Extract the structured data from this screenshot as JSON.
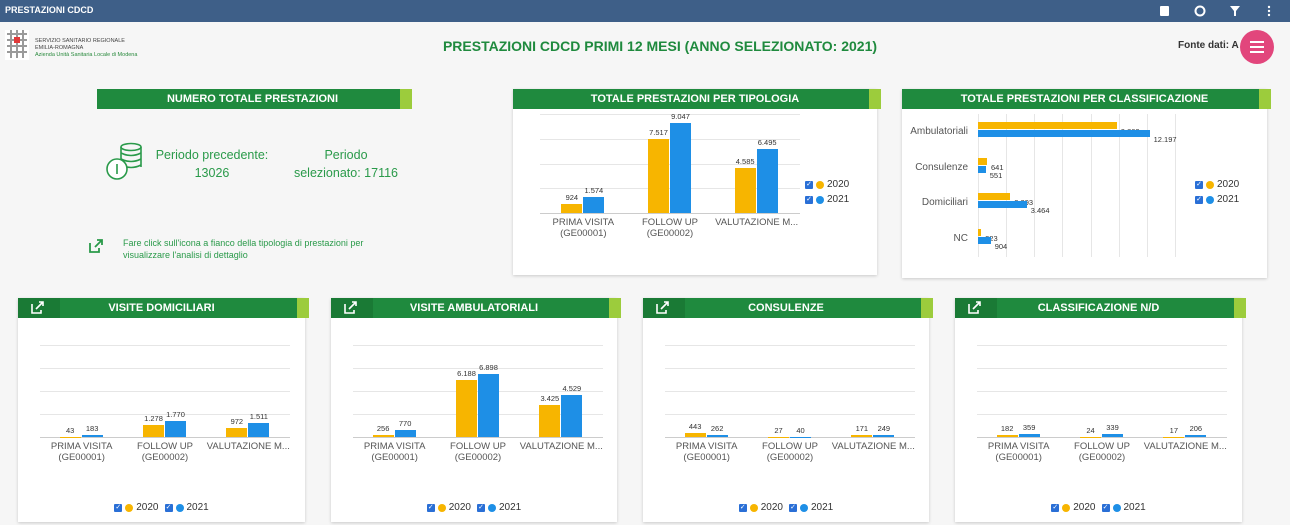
{
  "header": {
    "app_name": "PRESTAZIONI CDCD",
    "title": "PRESTAZIONI CDCD PRIMI 12 MESI (ANNO SELEZIONATO: 2021)",
    "source": "Fonte dati: A"
  },
  "logo": {
    "line1": "SERVIZIO SANITARIO REGIONALE",
    "line2": "EMILIA-ROMAGNA",
    "line3": "Azienda Unità Sanitaria Locale di Modena"
  },
  "summary": {
    "title": "NUMERO TOTALE PRESTAZIONI",
    "previous_label": "Periodo precedente:",
    "previous_value": 13026,
    "selected_label": "Periodo selezionato:",
    "selected_value": 17116,
    "note": "Fare click sull'icona a fianco della tipologia di prestazioni per visualizzare l'analisi di dettaglio"
  },
  "chart_data": [
    {
      "type": "bar",
      "title": "TOTALE PRESTAZIONI PER TIPOLOGIA",
      "legend": "right",
      "ylim": [
        0,
        10000
      ],
      "categories": [
        "PRIMA VISITA (GE00001)",
        "FOLLOW UP (GE00002)",
        "VALUTAZIONE M..."
      ],
      "series": [
        {
          "name": "2020",
          "color": "#f7b500",
          "values": [
            924,
            7517,
            4585
          ],
          "value_labels": [
            "924",
            "7.517",
            "4.585"
          ]
        },
        {
          "name": "2021",
          "color": "#1e8fe6",
          "values": [
            1574,
            9047,
            6495
          ],
          "value_labels": [
            "1.574",
            "9.047",
            "6.495"
          ]
        }
      ]
    },
    {
      "type": "bar",
      "horizontal": true,
      "title": "TOTALE PRESTAZIONI PER CLASSIFICAZIONE",
      "legend": "right",
      "xlim": [
        0,
        14000
      ],
      "categories": [
        "Ambulatoriali",
        "Consulenze",
        "Domiciliari",
        "NC"
      ],
      "series": [
        {
          "name": "2020",
          "color": "#f7b500",
          "values": [
            9869,
            641,
            2293,
            223
          ],
          "value_labels": [
            "9.869",
            "641",
            "2.293",
            "223"
          ]
        },
        {
          "name": "2021",
          "color": "#1e8fe6",
          "values": [
            12197,
            551,
            3464,
            904
          ],
          "value_labels": [
            "12.197",
            "551",
            "3.464",
            "904"
          ]
        }
      ]
    },
    {
      "type": "bar",
      "title": "VISITE DOMICILIARI",
      "legend": "bottom",
      "ylim": [
        0,
        10000
      ],
      "categories": [
        "PRIMA VISITA (GE00001)",
        "FOLLOW UP (GE00002)",
        "VALUTAZIONE M..."
      ],
      "series": [
        {
          "name": "2020",
          "color": "#f7b500",
          "values": [
            43,
            1278,
            972
          ],
          "value_labels": [
            "43",
            "1.278",
            "972"
          ]
        },
        {
          "name": "2021",
          "color": "#1e8fe6",
          "values": [
            183,
            1770,
            1511
          ],
          "value_labels": [
            "183",
            "1.770",
            "1.511"
          ]
        }
      ]
    },
    {
      "type": "bar",
      "title": "VISITE AMBULATORIALI",
      "legend": "bottom",
      "ylim": [
        0,
        10000
      ],
      "categories": [
        "PRIMA VISITA (GE00001)",
        "FOLLOW UP (GE00002)",
        "VALUTAZIONE M..."
      ],
      "series": [
        {
          "name": "2020",
          "color": "#f7b500",
          "values": [
            256,
            6188,
            3425
          ],
          "value_labels": [
            "256",
            "6.188",
            "3.425"
          ]
        },
        {
          "name": "2021",
          "color": "#1e8fe6",
          "values": [
            770,
            6898,
            4529
          ],
          "value_labels": [
            "770",
            "6.898",
            "4.529"
          ]
        }
      ]
    },
    {
      "type": "bar",
      "title": "CONSULENZE",
      "legend": "bottom",
      "ylim": [
        0,
        10000
      ],
      "categories": [
        "PRIMA VISITA (GE00001)",
        "FOLLOW UP (GE00002)",
        "VALUTAZIONE M..."
      ],
      "series": [
        {
          "name": "2020",
          "color": "#f7b500",
          "values": [
            443,
            27,
            171
          ],
          "value_labels": [
            "443",
            "27",
            "171"
          ]
        },
        {
          "name": "2021",
          "color": "#1e8fe6",
          "values": [
            262,
            40,
            249
          ],
          "value_labels": [
            "262",
            "40",
            "249"
          ]
        }
      ]
    },
    {
      "type": "bar",
      "title": "CLASSIFICAZIONE N/D",
      "legend": "bottom",
      "ylim": [
        0,
        10000
      ],
      "categories": [
        "PRIMA VISITA (GE00001)",
        "FOLLOW UP (GE00002)",
        "VALUTAZIONE M..."
      ],
      "series": [
        {
          "name": "2020",
          "color": "#f7b500",
          "values": [
            182,
            24,
            17
          ],
          "value_labels": [
            "182",
            "24",
            "17"
          ]
        },
        {
          "name": "2021",
          "color": "#1e8fe6",
          "values": [
            359,
            339,
            206
          ],
          "value_labels": [
            "359",
            "339",
            "206"
          ]
        }
      ]
    }
  ]
}
